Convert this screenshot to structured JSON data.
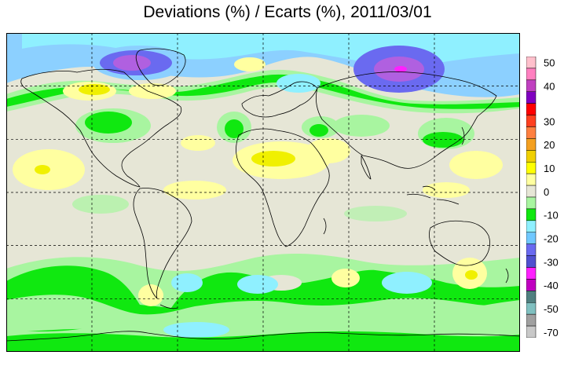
{
  "title": "Deviations (%) / Ecarts (%), 2011/03/01",
  "colors": {
    "ocean_base": "#e6e6d6",
    "cyan": "#8ff0ff",
    "green_light": "#a8f5a0",
    "green": "#10e810",
    "blue_sky": "#8cd0ff",
    "blue": "#6a6af0",
    "violet": "#b060e0",
    "magenta": "#ff20ff",
    "yellow_light": "#ffffa0",
    "yellow": "#f0f000",
    "coast": "#000000"
  },
  "legend": {
    "items": [
      {
        "label": "50",
        "color": "#ffc0cc"
      },
      {
        "label": "",
        "color": "#ff80c0"
      },
      {
        "label": "40",
        "color": "#c040c0"
      },
      {
        "label": "",
        "color": "#8000c0"
      },
      {
        "label": "",
        "color": "#ff0000"
      },
      {
        "label": "30",
        "color": "#ff4020"
      },
      {
        "label": "",
        "color": "#ff8040"
      },
      {
        "label": "20",
        "color": "#f4a020"
      },
      {
        "label": "",
        "color": "#f0d000"
      },
      {
        "label": "10",
        "color": "#ffff00"
      },
      {
        "label": "",
        "color": "#ffffa0"
      },
      {
        "label": "0",
        "color": "#e6e6d6"
      },
      {
        "label": "",
        "color": "#a8f5a0"
      },
      {
        "label": "-10",
        "color": "#10e810"
      },
      {
        "label": "",
        "color": "#8ff0ff"
      },
      {
        "label": "-20",
        "color": "#70c8ff"
      },
      {
        "label": "",
        "color": "#6a6af0"
      },
      {
        "label": "-30",
        "color": "#5050d0"
      },
      {
        "label": "",
        "color": "#ff20ff"
      },
      {
        "label": "-40",
        "color": "#c000c0"
      },
      {
        "label": "",
        "color": "#508080"
      },
      {
        "label": "-50",
        "color": "#80c0c0"
      },
      {
        "label": "",
        "color": "#a0a0a0"
      },
      {
        "label": "-70",
        "color": "#c8c8c8"
      }
    ]
  }
}
